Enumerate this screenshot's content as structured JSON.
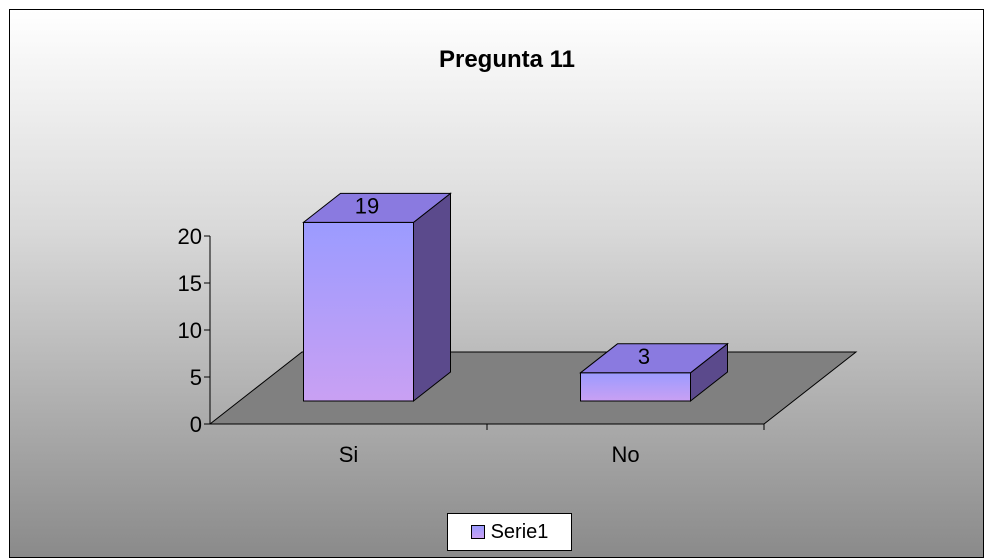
{
  "chart_data": {
    "type": "bar",
    "style": "3d-column",
    "title": "Pregunta 11",
    "categories": [
      "Si",
      "No"
    ],
    "series": [
      {
        "name": "Serie1",
        "values": [
          19,
          3
        ]
      }
    ],
    "data_labels": [
      "19",
      "3"
    ],
    "ylim": [
      0,
      20
    ],
    "yticks": [
      "0",
      "5",
      "10",
      "15",
      "20"
    ],
    "xlabel": "",
    "ylabel": "",
    "grid": false,
    "legend": "bottom",
    "colors": {
      "bar_front_top": "#9b9bff",
      "bar_front_bottom": "#c9a0f3",
      "bar_side": "#5b4a8c",
      "bar_top": "#8a7ae0",
      "floor": "#808080",
      "background_top": "#ffffff",
      "background_bottom": "#8a8a8a"
    }
  }
}
